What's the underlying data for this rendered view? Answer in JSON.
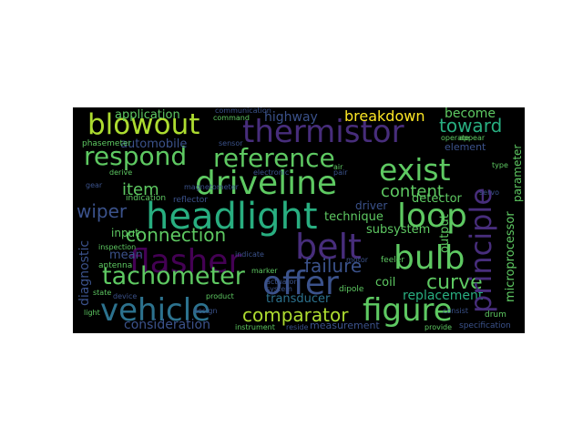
{
  "palette": {
    "background": "#000000",
    "page": "#ffffff",
    "viridis": [
      "#440154",
      "#472d7b",
      "#3b528b",
      "#2c728e",
      "#21918c",
      "#28ae80",
      "#5ec962",
      "#addc30",
      "#fde725"
    ]
  },
  "words": {
    "blowout": "blowout",
    "thermistor": "thermistor",
    "respond": "respond",
    "reference": "reference",
    "exist": "exist",
    "driveline": "driveline",
    "headlight": "headlight",
    "loop": "loop",
    "principle": "principle",
    "flasher": "flasher",
    "belt": "belt",
    "bulb": "bulb",
    "offer": "offer",
    "tachometer": "tachometer",
    "vehicle": "vehicle",
    "figure": "figure",
    "comparator": "comparator",
    "connection": "connection",
    "item": "item",
    "content": "content",
    "toward": "toward",
    "breakdown": "breakdown",
    "application": "application",
    "highway": "highway",
    "become": "become",
    "element": "element",
    "automobile": "automobile",
    "wiper": "wiper",
    "input": "input",
    "mean": "mean",
    "diagnostic": "diagnostic",
    "failure": "failure",
    "curve": "curve",
    "coil": "coil",
    "replacement": "replacement",
    "technique": "technique",
    "driver": "driver",
    "subsystem": "subsystem",
    "detector": "detector",
    "output": "output",
    "microprocessor": "microprocessor",
    "parameter": "parameter",
    "consideration": "consideration",
    "measurement": "measurement",
    "transducer": "transducer",
    "antenna": "antenna",
    "indication": "indication",
    "specification": "specification",
    "provide": "provide",
    "instrument": "instrument",
    "dipole": "dipole",
    "product": "product",
    "design": "design",
    "state": "state",
    "device": "device",
    "drum": "drum",
    "magnetometer": "magnetometer",
    "phasemeter": "phasemeter",
    "command": "command",
    "communication": "communication",
    "sensor": "sensor",
    "electronic": "electronic",
    "derive": "derive",
    "reflector": "reflector",
    "feeler": "feeler",
    "motor": "motor",
    "marker": "marker",
    "actuator": "actuator",
    "system": "system",
    "servo": "servo",
    "operate": "operate",
    "appear": "appear",
    "type": "type",
    "consist": "consist",
    "indicate": "indicate",
    "inspection": "inspection",
    "reside": "reside",
    "light": "light",
    "air": "air",
    "gear": "gear",
    "pair": "pair"
  }
}
